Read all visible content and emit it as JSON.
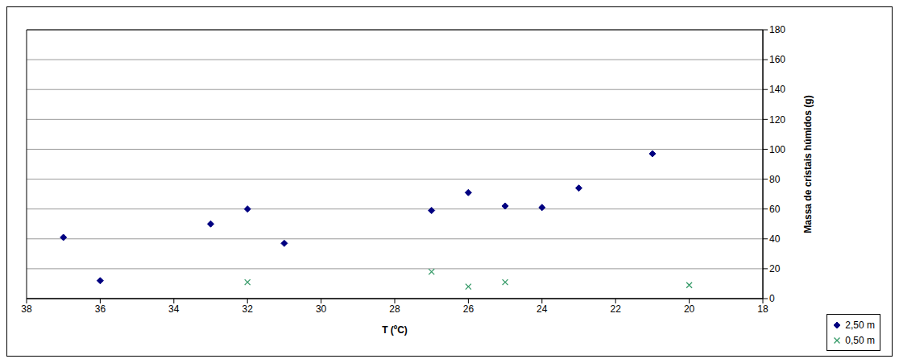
{
  "chart_data": {
    "type": "scatter",
    "x_label": "T (ºC)",
    "y_label": "Massa de cristais húmidos (g)",
    "xlim": [
      38,
      18
    ],
    "xticks": [
      38,
      36,
      34,
      32,
      30,
      28,
      26,
      24,
      22,
      20,
      18
    ],
    "ylim": [
      0,
      180
    ],
    "yticks": [
      0,
      20,
      40,
      60,
      80,
      100,
      120,
      140,
      160,
      180
    ],
    "grid": true,
    "legend": "lower right",
    "series": [
      {
        "name": "2,50 m",
        "color": "#000080",
        "marker": "diamond",
        "x": [
          37,
          36,
          33,
          32,
          31,
          27,
          26,
          25,
          24,
          23,
          21
        ],
        "values": [
          41,
          12,
          50,
          60,
          37,
          59,
          71,
          62,
          61,
          74,
          97
        ]
      },
      {
        "name": "0,50 m",
        "color": "#339966",
        "marker": "x",
        "x": [
          32,
          27,
          26,
          25,
          20
        ],
        "values": [
          11,
          18,
          8,
          11,
          9
        ]
      }
    ]
  }
}
